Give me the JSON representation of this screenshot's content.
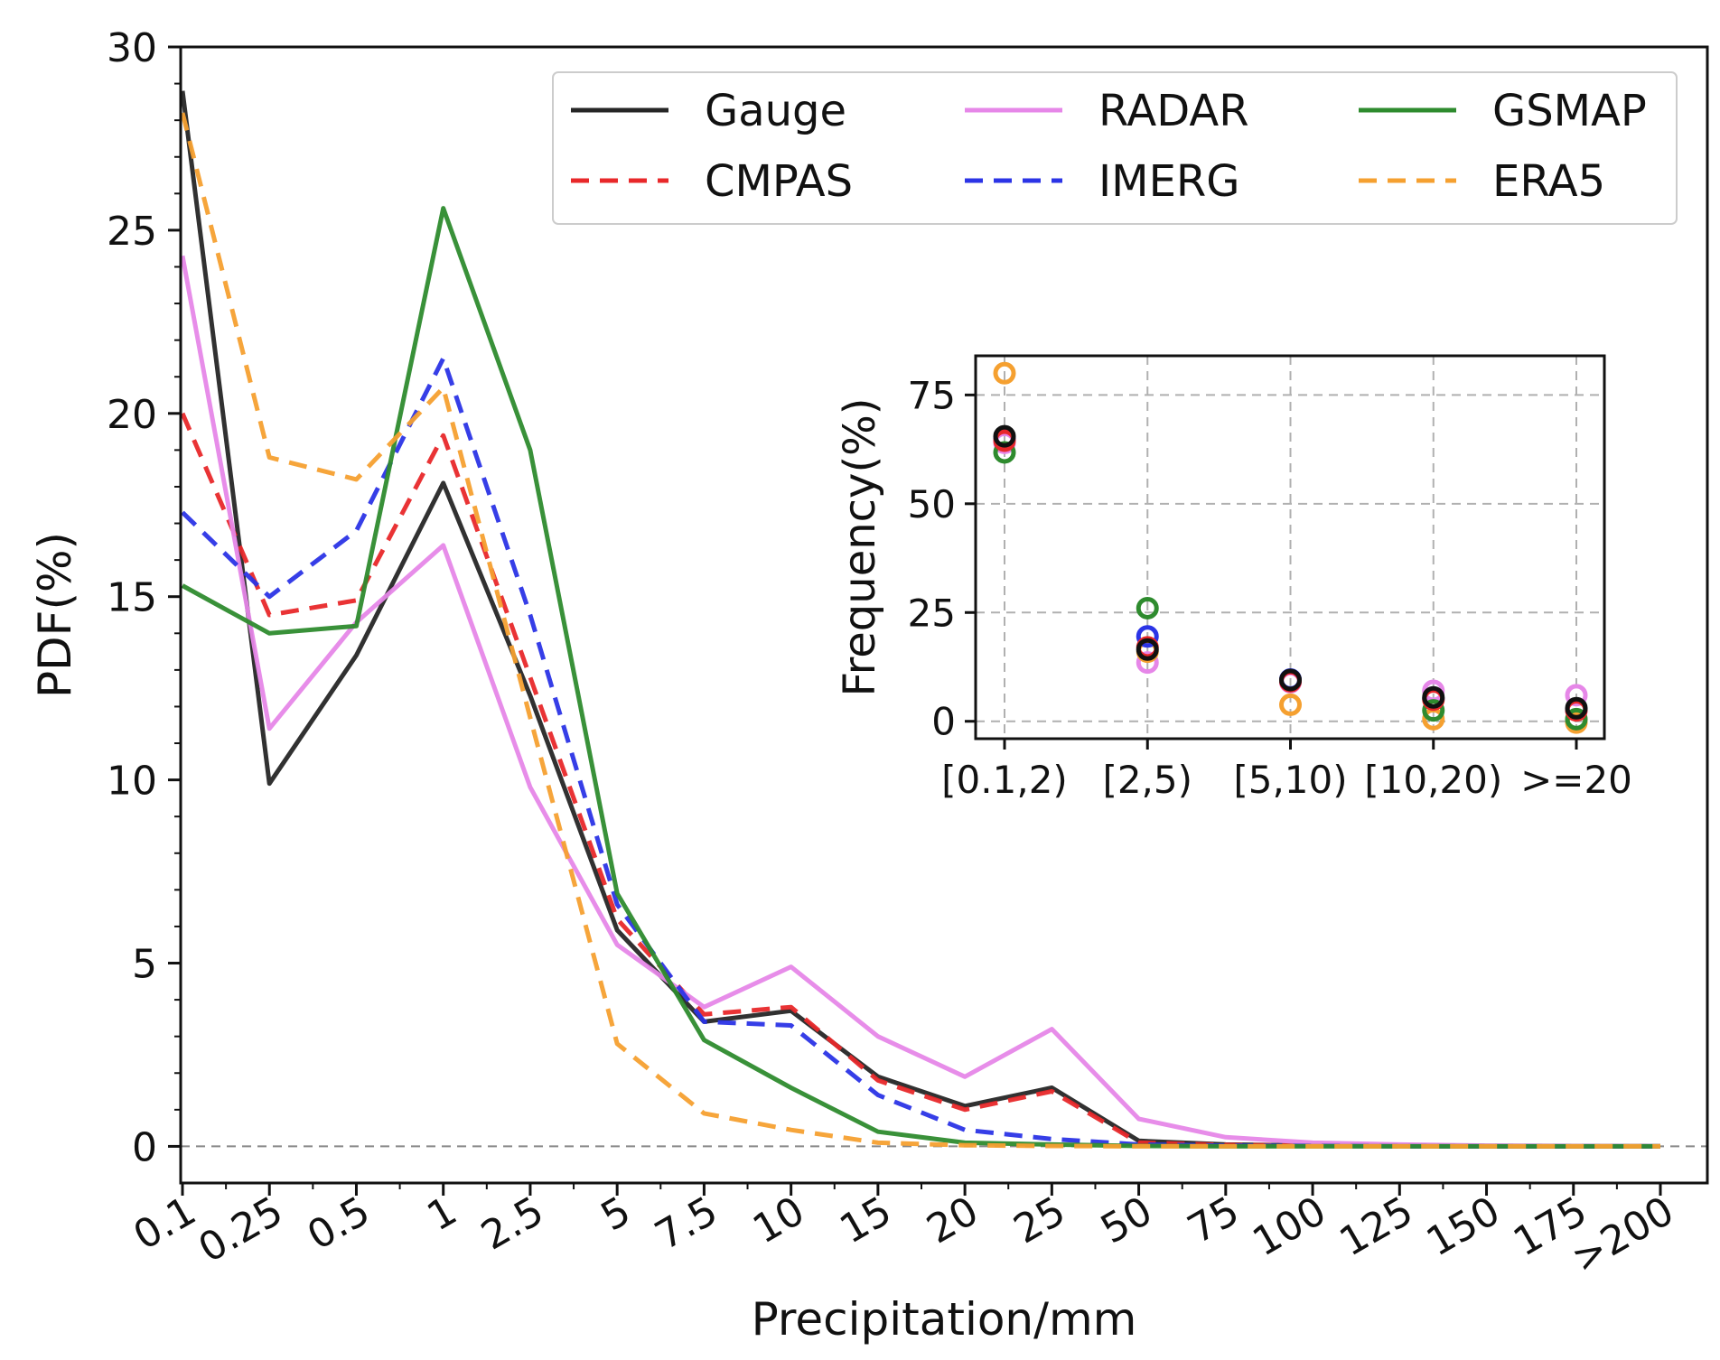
{
  "chart_data": [
    {
      "type": "line",
      "title": "",
      "xlabel": "Precipitation/mm",
      "ylabel": "PDF(%)",
      "ylim": [
        -1,
        30
      ],
      "yticks": [
        0,
        5,
        10,
        15,
        20,
        25,
        30
      ],
      "categories": [
        "0.1",
        "0.25",
        "0.5",
        "1",
        "2.5",
        "5",
        "7.5",
        "10",
        "15",
        "20",
        "25",
        "50",
        "75",
        "100",
        "125",
        "150",
        "175",
        ">200"
      ],
      "legend_position": "top-right",
      "reference_line": 0,
      "series": [
        {
          "name": "Gauge",
          "color": "#262626",
          "dash": "solid",
          "values": [
            28.8,
            9.9,
            13.4,
            18.1,
            12.3,
            5.9,
            3.4,
            3.7,
            1.9,
            1.1,
            1.6,
            0.15,
            0.05,
            0.02,
            0.01,
            0.0,
            0.0,
            0.0
          ]
        },
        {
          "name": "CMPAS",
          "color": "#e8282a",
          "dash": "dashed",
          "values": [
            20.0,
            14.5,
            14.9,
            19.4,
            12.8,
            6.2,
            3.6,
            3.8,
            1.8,
            1.0,
            1.5,
            0.1,
            0.04,
            0.02,
            0.01,
            0.0,
            0.0,
            0.0
          ]
        },
        {
          "name": "RADAR",
          "color": "#e687e8",
          "dash": "solid",
          "values": [
            24.3,
            11.4,
            14.3,
            16.4,
            9.8,
            5.5,
            3.8,
            4.9,
            3.0,
            1.9,
            3.2,
            0.75,
            0.25,
            0.1,
            0.05,
            0.02,
            0.01,
            0.0
          ]
        },
        {
          "name": "IMERG",
          "color": "#2b34e6",
          "dash": "dashed",
          "values": [
            17.3,
            15.0,
            16.8,
            21.5,
            14.5,
            6.6,
            3.4,
            3.3,
            1.4,
            0.45,
            0.2,
            0.05,
            0.02,
            0.01,
            0.0,
            0.0,
            0.0,
            0.0
          ]
        },
        {
          "name": "GSMAP",
          "color": "#2e8b2e",
          "dash": "solid",
          "values": [
            15.3,
            14.0,
            14.2,
            25.6,
            19.0,
            6.9,
            2.9,
            1.6,
            0.4,
            0.1,
            0.05,
            0.01,
            0.0,
            0.0,
            0.0,
            0.0,
            0.0,
            0.0
          ]
        },
        {
          "name": "ERA5",
          "color": "#f5a030",
          "dash": "dashed",
          "values": [
            28.2,
            18.8,
            18.2,
            20.7,
            11.7,
            2.8,
            0.9,
            0.45,
            0.1,
            0.03,
            0.01,
            0.0,
            0.0,
            0.0,
            0.0,
            0.0,
            0.0,
            0.0
          ]
        }
      ]
    },
    {
      "type": "scatter",
      "title": "",
      "xlabel": "",
      "ylabel": "Frequency(%)",
      "ylim": [
        -4,
        84
      ],
      "yticks": [
        0,
        25,
        50,
        75
      ],
      "categories": [
        "[0.1,2)",
        "[2,5)",
        "[5,10)",
        "[10,20)",
        ">=20"
      ],
      "grid": true,
      "marker": "hollow-circle",
      "series": [
        {
          "name": "Gauge",
          "color": "#111111",
          "values": [
            65.5,
            16.5,
            9.5,
            5.5,
            3.0
          ]
        },
        {
          "name": "CMPAS",
          "color": "#e8282a",
          "values": [
            64.5,
            17.0,
            9.2,
            5.0,
            2.5
          ]
        },
        {
          "name": "RADAR",
          "color": "#e687e8",
          "values": [
            64.0,
            13.5,
            9.0,
            7.0,
            6.0
          ]
        },
        {
          "name": "IMERG",
          "color": "#2b34e6",
          "values": [
            64.8,
            19.5,
            9.6,
            5.2,
            2.6
          ]
        },
        {
          "name": "GSMAP",
          "color": "#2e8b2e",
          "values": [
            61.8,
            26.0,
            9.4,
            2.5,
            0.5
          ]
        },
        {
          "name": "ERA5",
          "color": "#f5a030",
          "values": [
            80.0,
            16.0,
            3.8,
            0.5,
            -0.3
          ]
        }
      ]
    }
  ]
}
